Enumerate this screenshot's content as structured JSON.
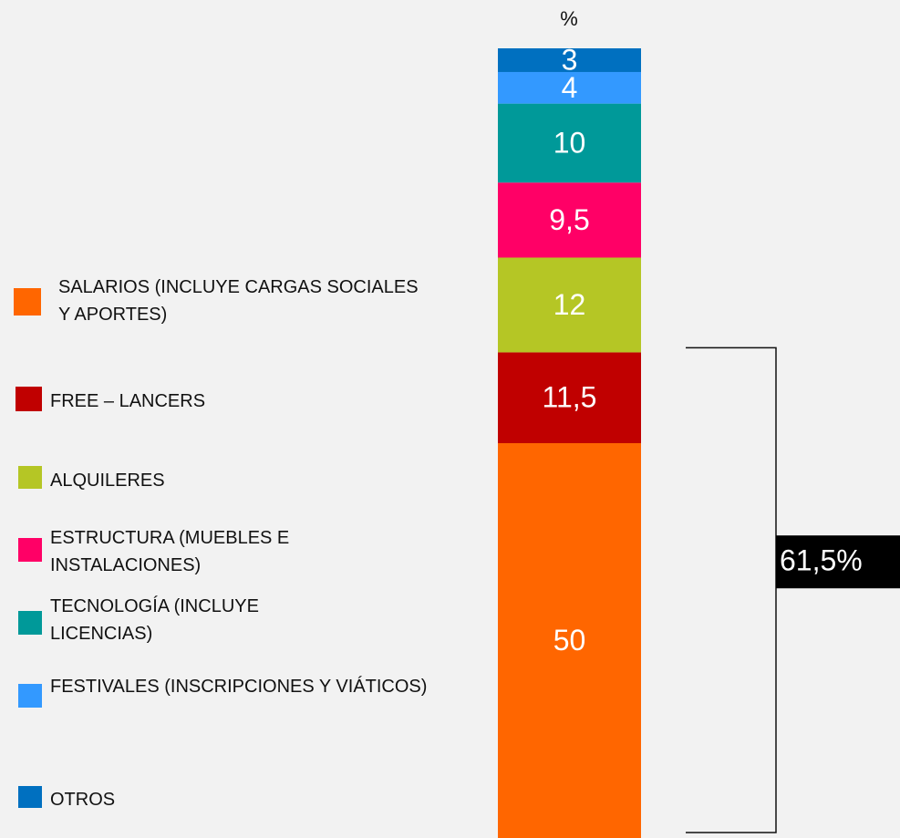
{
  "chart_data": {
    "type": "bar",
    "stacked": true,
    "title": "%",
    "categories": [
      null
    ],
    "ylim": [
      0,
      100
    ],
    "series": [
      {
        "name": "SALARIOS (INCLUYE CARGAS SOCIALES Y APORTES)",
        "color": "#ff6600",
        "values": [
          50
        ],
        "value_labels": [
          "50"
        ]
      },
      {
        "name": "FREE – LANCERS",
        "color": "#c00000",
        "values": [
          11.5
        ],
        "value_labels": [
          "11,5"
        ]
      },
      {
        "name": "ALQUILERES",
        "color": "#b5c625",
        "values": [
          12
        ],
        "value_labels": [
          "12"
        ]
      },
      {
        "name": "ESTRUCTURA (MUEBLES E INSTALACIONES)",
        "color": "#ff0066",
        "values": [
          9.5
        ],
        "value_labels": [
          "9,5"
        ]
      },
      {
        "name": "TECNOLOGÍA  (INCLUYE LICENCIAS)",
        "color": "#009999",
        "values": [
          10
        ],
        "value_labels": [
          "10"
        ]
      },
      {
        "name": "FESTIVALES (INSCRIPCIONES Y VIÁTICOS)",
        "color": "#3399ff",
        "values": [
          4
        ],
        "value_labels": [
          "4"
        ]
      },
      {
        "name": "OTROS",
        "color": "#0070c0",
        "values": [
          3
        ],
        "value_labels": [
          "3"
        ]
      }
    ],
    "annotations": [
      {
        "text": "61,5%",
        "series": [
          0,
          1
        ]
      }
    ]
  }
}
